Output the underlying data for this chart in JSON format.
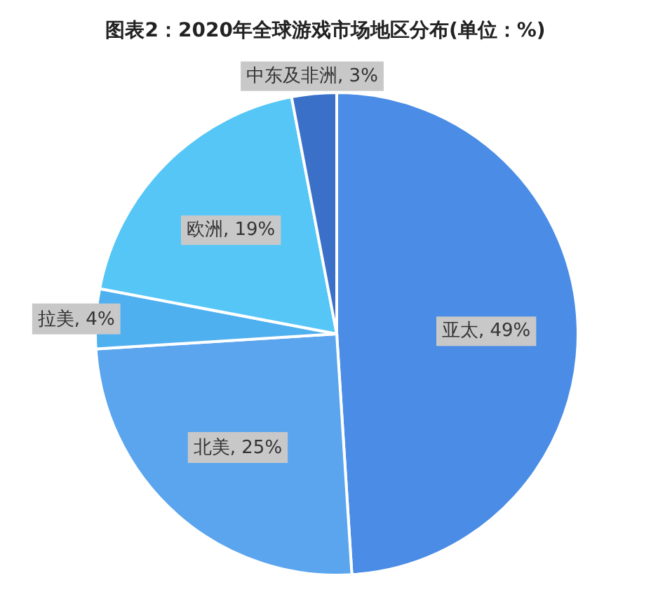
{
  "chart_data": {
    "type": "pie",
    "title": "图表2：2020年全球游戏市场地区分布(单位：%)",
    "categories": [
      "亚太",
      "北美",
      "拉美",
      "欧洲",
      "中东及非洲"
    ],
    "values": [
      49,
      25,
      4,
      19,
      3
    ],
    "colors": [
      "#4a8ce6",
      "#5aa5ee",
      "#4fb0f0",
      "#55c6f6",
      "#3b70c9"
    ],
    "value_labels": [
      "49%",
      "25%",
      "4%",
      "19%",
      "3%"
    ]
  }
}
